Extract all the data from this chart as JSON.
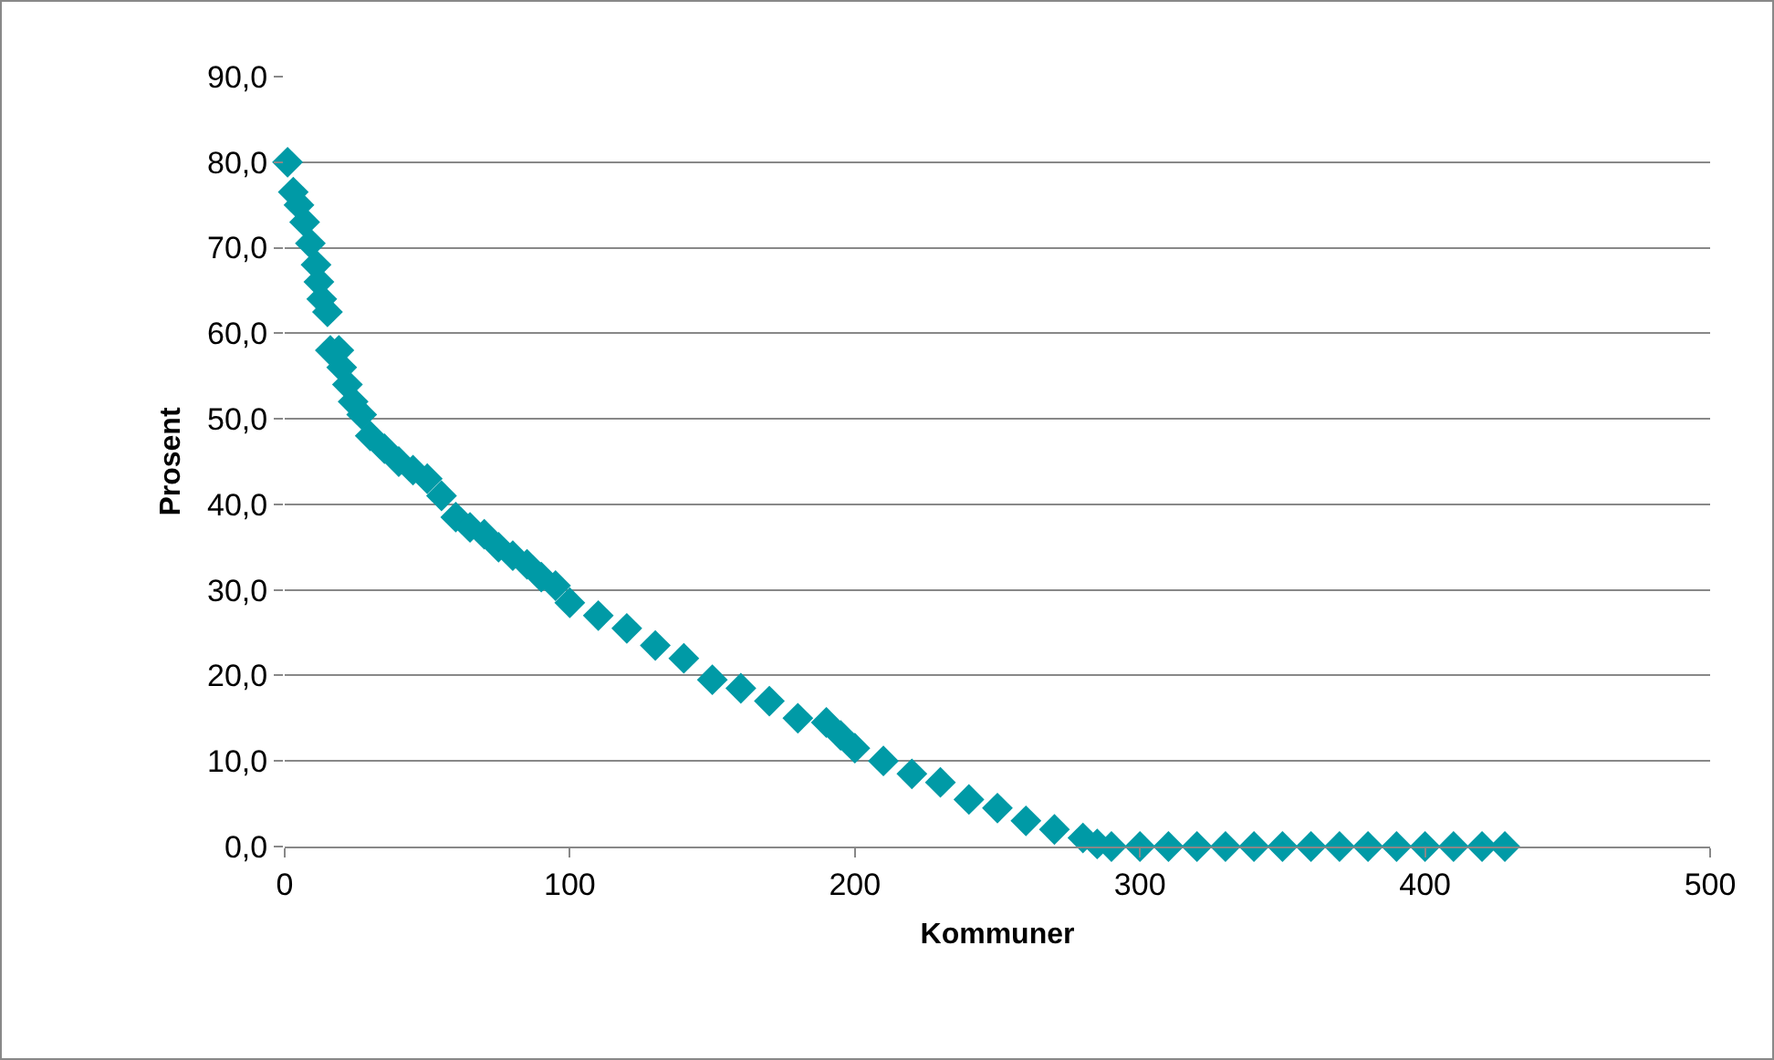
{
  "chart_data": {
    "type": "scatter",
    "xlabel": "Kommuner",
    "ylabel": "Prosent",
    "marker": "diamond",
    "grid": "y",
    "xlim": [
      0,
      500
    ],
    "xticks": [
      0,
      100,
      200,
      300,
      400,
      500
    ],
    "ylim": [
      0,
      90
    ],
    "yticks": [
      {
        "value": 0,
        "label": "0,0"
      },
      {
        "value": 10,
        "label": "10,0"
      },
      {
        "value": 20,
        "label": "20,0"
      },
      {
        "value": 30,
        "label": "30,0"
      },
      {
        "value": 40,
        "label": "40,0"
      },
      {
        "value": 50,
        "label": "50,0"
      },
      {
        "value": 60,
        "label": "60,0"
      },
      {
        "value": 70,
        "label": "70,0"
      },
      {
        "value": 80,
        "label": "80,0"
      },
      {
        "value": 90,
        "label": "90,0"
      }
    ],
    "series": [
      {
        "color": "#009aa6",
        "x": [
          1,
          3,
          5,
          7,
          9,
          11,
          12,
          13,
          15,
          16,
          19,
          20,
          22,
          24,
          27,
          30,
          35,
          40,
          45,
          50,
          55,
          60,
          65,
          70,
          75,
          80,
          85,
          90,
          95,
          100,
          110,
          120,
          130,
          140,
          150,
          160,
          170,
          180,
          190,
          195,
          200,
          210,
          220,
          230,
          240,
          250,
          260,
          270,
          280,
          285,
          290,
          300,
          310,
          320,
          330,
          340,
          350,
          360,
          370,
          380,
          390,
          400,
          410,
          420,
          428
        ],
        "values": [
          80,
          76.5,
          75,
          73,
          70.5,
          68,
          66,
          64,
          62.5,
          58,
          58,
          56,
          54,
          52,
          50.5,
          48,
          46.5,
          45,
          44,
          43,
          41,
          38.5,
          37.3,
          36.5,
          35,
          34,
          33,
          31.5,
          30.5,
          28.5,
          27,
          25.5,
          23.5,
          22,
          19.5,
          18.5,
          17,
          15,
          14.5,
          13,
          11.5,
          10,
          8.5,
          7.5,
          5.5,
          4.5,
          3,
          2,
          1,
          0.3,
          0,
          0,
          0,
          0,
          0,
          0,
          0,
          0,
          0,
          0,
          0,
          0,
          0,
          0,
          0
        ]
      }
    ]
  }
}
